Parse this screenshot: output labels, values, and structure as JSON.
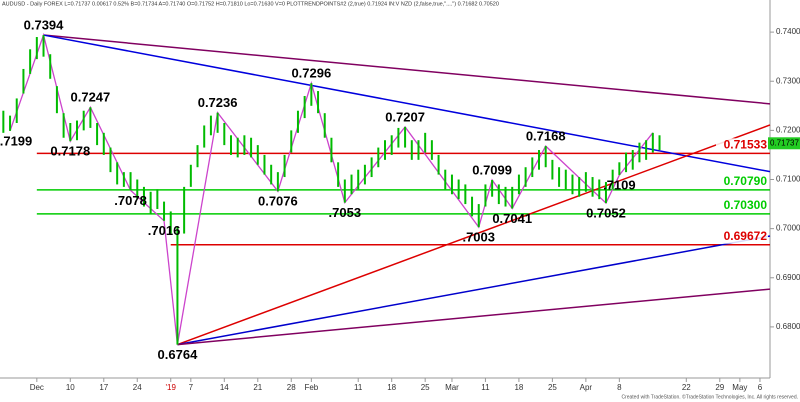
{
  "chart_data": {
    "type": "ohlc",
    "header": "AUDUSD - Daily FOREX  L=0.71737  0.00617  0.52%  B=0.71734  A=0.71740  O=0.71752  H=0.71810  Lo=0.71630  V=0  PLOTTRENDPOINTS#2 (2,true)  0.71924  IN:V NZD (2,false,true,\"....\")  0.71682  0.70520",
    "footer": "Created with TradeStation. ©TradeStation Technologies, Inc. All rights reserved.",
    "xlim": [
      -0.5,
      114.5
    ],
    "xticks": [
      {
        "value": 5,
        "label": "Dec"
      },
      {
        "value": 10,
        "label": "10"
      },
      {
        "value": 15,
        "label": "17"
      },
      {
        "value": 20,
        "label": "24"
      },
      {
        "value": 25,
        "label": "'19",
        "color": "#cc0000"
      },
      {
        "value": 28,
        "label": "7"
      },
      {
        "value": 33,
        "label": "14"
      },
      {
        "value": 38,
        "label": "21"
      },
      {
        "value": 43,
        "label": "28"
      },
      {
        "value": 46,
        "label": "Feb"
      },
      {
        "value": 53,
        "label": "11"
      },
      {
        "value": 58,
        "label": "18"
      },
      {
        "value": 63,
        "label": "25"
      },
      {
        "value": 67,
        "label": "Mar"
      },
      {
        "value": 72,
        "label": "11"
      },
      {
        "value": 77,
        "label": "18"
      },
      {
        "value": 82,
        "label": "25"
      },
      {
        "value": 87,
        "label": "Apr"
      },
      {
        "value": 92,
        "label": "8"
      },
      {
        "value": 102,
        "label": "22"
      },
      {
        "value": 107,
        "label": "29"
      },
      {
        "value": 110,
        "label": "May"
      },
      {
        "value": 113,
        "label": "6"
      }
    ],
    "ylim": [
      0.6696,
      0.7445
    ],
    "yticks": [
      {
        "value": 0.68,
        "label": "0.68000"
      },
      {
        "value": 0.69,
        "label": "0.69000"
      },
      {
        "value": 0.7,
        "label": "0.70000"
      },
      {
        "value": 0.71,
        "label": "0.71000"
      },
      {
        "value": 0.72,
        "label": "0.72000"
      },
      {
        "value": 0.73,
        "label": "0.73000"
      },
      {
        "value": 0.74,
        "label": "0.74000"
      }
    ],
    "bars": {
      "color": "#00bb00",
      "high": [
        0.724,
        0.723,
        0.7265,
        0.7325,
        0.7365,
        0.739,
        0.7394,
        0.7355,
        0.729,
        0.7235,
        0.7215,
        0.722,
        0.724,
        0.7247,
        0.7215,
        0.7195,
        0.7165,
        0.7135,
        0.7115,
        0.7115,
        0.71,
        0.7085,
        0.7075,
        0.708,
        0.7055,
        0.7035,
        0.7005,
        0.7085,
        0.713,
        0.717,
        0.721,
        0.723,
        0.7236,
        0.7215,
        0.719,
        0.7185,
        0.719,
        0.7185,
        0.717,
        0.715,
        0.713,
        0.7115,
        0.715,
        0.72,
        0.724,
        0.727,
        0.7296,
        0.728,
        0.7235,
        0.7185,
        0.7135,
        0.71,
        0.711,
        0.712,
        0.713,
        0.7145,
        0.7165,
        0.718,
        0.719,
        0.7205,
        0.7207,
        0.718,
        0.718,
        0.7195,
        0.718,
        0.715,
        0.712,
        0.711,
        0.71,
        0.709,
        0.7065,
        0.705,
        0.709,
        0.7099,
        0.709,
        0.7085,
        0.7085,
        0.711,
        0.7125,
        0.7145,
        0.716,
        0.7168,
        0.714,
        0.7125,
        0.712,
        0.711,
        0.7105,
        0.7115,
        0.7105,
        0.71,
        0.7095,
        0.712,
        0.7135,
        0.7155,
        0.716,
        0.7175,
        0.718,
        0.7195,
        0.719
      ],
      "low": [
        0.7195,
        0.7199,
        0.7215,
        0.7275,
        0.7315,
        0.7345,
        0.735,
        0.7305,
        0.7235,
        0.7185,
        0.7178,
        0.718,
        0.72,
        0.7205,
        0.717,
        0.715,
        0.7115,
        0.709,
        0.7085,
        0.7078,
        0.706,
        0.7045,
        0.703,
        0.704,
        0.7016,
        0.699,
        0.6764,
        0.699,
        0.7085,
        0.7125,
        0.7165,
        0.719,
        0.7195,
        0.717,
        0.715,
        0.7145,
        0.715,
        0.7145,
        0.713,
        0.711,
        0.709,
        0.7076,
        0.7105,
        0.7155,
        0.7195,
        0.7225,
        0.725,
        0.7235,
        0.7185,
        0.7135,
        0.7085,
        0.7053,
        0.707,
        0.708,
        0.709,
        0.7105,
        0.7125,
        0.714,
        0.715,
        0.7165,
        0.7165,
        0.714,
        0.714,
        0.7155,
        0.714,
        0.711,
        0.708,
        0.707,
        0.706,
        0.705,
        0.7025,
        0.7003,
        0.7045,
        0.7065,
        0.705,
        0.7045,
        0.7041,
        0.707,
        0.7085,
        0.7105,
        0.712,
        0.7125,
        0.71,
        0.7085,
        0.708,
        0.707,
        0.7065,
        0.7075,
        0.7065,
        0.706,
        0.7052,
        0.708,
        0.7109,
        0.7115,
        0.712,
        0.7135,
        0.714,
        0.7155,
        0.716
      ]
    },
    "swing": {
      "color": "#cc44cc",
      "x": [
        1,
        6,
        10,
        13,
        19,
        24,
        26,
        32,
        41,
        46,
        51,
        60,
        71,
        73,
        76,
        81,
        90,
        92,
        97
      ],
      "values": [
        0.7199,
        0.7394,
        0.7178,
        0.7247,
        0.7078,
        0.7016,
        0.6764,
        0.7236,
        0.7076,
        0.7296,
        0.7053,
        0.7207,
        0.7003,
        0.7099,
        0.7041,
        0.7168,
        0.7052,
        0.7109,
        0.7195
      ]
    },
    "trendlines": [
      {
        "color": "#800060",
        "x": [
          6,
          114.5
        ],
        "values": [
          0.7394,
          0.7254
        ]
      },
      {
        "color": "#0000dd",
        "x": [
          6,
          114.5
        ],
        "values": [
          0.7394,
          0.7116
        ]
      },
      {
        "color": "#dd0000",
        "x": [
          26,
          114.5
        ],
        "values": [
          0.6764,
          0.7211
        ]
      },
      {
        "color": "#0000cc",
        "x": [
          26,
          114.5
        ],
        "values": [
          0.6764,
          0.6985
        ]
      },
      {
        "color": "#800060",
        "x": [
          26,
          114.5
        ],
        "values": [
          0.6764,
          0.6877
        ]
      }
    ],
    "levels": [
      {
        "value": 0.71533,
        "label": "0.71533",
        "color": "#dd0000",
        "x": 5
      },
      {
        "value": 0.7079,
        "label": "0.70790",
        "color": "#00cc00",
        "x": 5
      },
      {
        "value": 0.703,
        "label": "0.70300",
        "color": "#00cc00",
        "x": 5
      },
      {
        "value": 0.69672,
        "label": "0.69672",
        "color": "#dd0000",
        "x": 25
      }
    ],
    "last_price": {
      "value": 0.71737,
      "label": "0.71737",
      "color": "#22cc22"
    },
    "annotations": [
      {
        "label": "0.7394",
        "x": 6,
        "value": 0.7394
      },
      {
        "label": ".7199",
        "x": 1,
        "value": 0.7199
      },
      {
        "label": "0.7178",
        "x": 10,
        "value": 0.7178
      },
      {
        "label": "0.7247",
        "x": 13,
        "value": 0.7247
      },
      {
        "label": ".7078",
        "x": 19,
        "value": 0.7078
      },
      {
        "label": ".7016",
        "x": 24,
        "value": 0.7016
      },
      {
        "label": "0.6764",
        "x": 26,
        "value": 0.6764
      },
      {
        "label": "0.7236",
        "x": 32,
        "value": 0.7236
      },
      {
        "label": "0.7076",
        "x": 41,
        "value": 0.7076
      },
      {
        "label": "0.7296",
        "x": 46,
        "value": 0.7296
      },
      {
        "label": ".7053",
        "x": 51,
        "value": 0.7053
      },
      {
        "label": "0.7207",
        "x": 60,
        "value": 0.7207
      },
      {
        "label": ".7003",
        "x": 71,
        "value": 0.7003
      },
      {
        "label": "0.7099",
        "x": 73,
        "value": 0.7099
      },
      {
        "label": "0.7041",
        "x": 76,
        "value": 0.7041
      },
      {
        "label": "0.7168",
        "x": 81,
        "value": 0.7168
      },
      {
        "label": "0.7052",
        "x": 90,
        "value": 0.7052
      },
      {
        "label": ".7109",
        "x": 92,
        "value": 0.7109
      }
    ]
  }
}
